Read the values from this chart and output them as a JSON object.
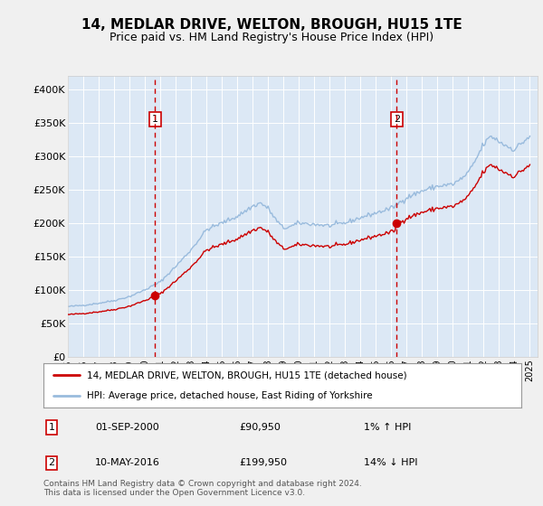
{
  "title": "14, MEDLAR DRIVE, WELTON, BROUGH, HU15 1TE",
  "subtitle": "Price paid vs. HM Land Registry's House Price Index (HPI)",
  "title_fontsize": 11,
  "subtitle_fontsize": 9,
  "ylabel_ticks": [
    "£0",
    "£50K",
    "£100K",
    "£150K",
    "£200K",
    "£250K",
    "£300K",
    "£350K",
    "£400K"
  ],
  "ytick_values": [
    0,
    50000,
    100000,
    150000,
    200000,
    250000,
    300000,
    350000,
    400000
  ],
  "ylim": [
    0,
    420000
  ],
  "xlim_start": 1995.0,
  "xlim_end": 2025.5,
  "fig_bg_color": "#f0f0f0",
  "plot_bg_color": "#dce8f5",
  "grid_color": "#ffffff",
  "property_line_color": "#cc0000",
  "hpi_line_color": "#99bbdd",
  "marker1_date_x": 2000.67,
  "marker2_date_x": 2016.36,
  "marker1_y": 90950,
  "marker2_y": 199950,
  "vline_color": "#cc0000",
  "marker_color": "#cc0000",
  "legend_line1": "14, MEDLAR DRIVE, WELTON, BROUGH, HU15 1TE (detached house)",
  "legend_line2": "HPI: Average price, detached house, East Riding of Yorkshire",
  "annotation1_label": "1",
  "annotation2_label": "2",
  "note1_label": "1",
  "note1_date": "01-SEP-2000",
  "note1_price": "£90,950",
  "note1_hpi": "1% ↑ HPI",
  "note2_label": "2",
  "note2_date": "10-MAY-2016",
  "note2_price": "£199,950",
  "note2_hpi": "14% ↓ HPI",
  "footer": "Contains HM Land Registry data © Crown copyright and database right 2024.\nThis data is licensed under the Open Government Licence v3.0.",
  "xtick_years": [
    1995,
    1996,
    1997,
    1998,
    1999,
    2000,
    2001,
    2002,
    2003,
    2004,
    2005,
    2006,
    2007,
    2008,
    2009,
    2010,
    2011,
    2012,
    2013,
    2014,
    2015,
    2016,
    2017,
    2018,
    2019,
    2020,
    2021,
    2022,
    2023,
    2024,
    2025
  ]
}
